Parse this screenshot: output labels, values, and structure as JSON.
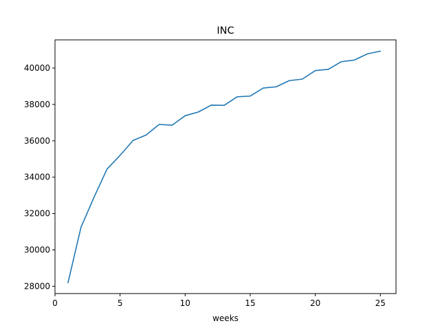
{
  "chart_data": {
    "type": "line",
    "title": "INC",
    "xlabel": "weeks",
    "ylabel": "",
    "xlim": [
      0,
      26.2
    ],
    "ylim": [
      27600,
      41550
    ],
    "x_ticks": [
      0,
      5,
      10,
      15,
      20,
      25
    ],
    "x_tick_labels": [
      "0",
      "5",
      "10",
      "15",
      "20",
      "25"
    ],
    "y_ticks": [
      28000,
      30000,
      32000,
      34000,
      36000,
      38000,
      40000
    ],
    "y_tick_labels": [
      "28000",
      "30000",
      "32000",
      "34000",
      "36000",
      "38000",
      "40000"
    ],
    "grid": false,
    "series": [
      {
        "color": "#1f77b4",
        "x": [
          1,
          2,
          3,
          4,
          5,
          6,
          7,
          8,
          9,
          10,
          11,
          12,
          13,
          14,
          15,
          16,
          17,
          18,
          19,
          20,
          21,
          22,
          23,
          24,
          25
        ],
        "values": [
          28200,
          31250,
          32900,
          34450,
          35200,
          36020,
          36320,
          36900,
          36860,
          37380,
          37580,
          37960,
          37950,
          38420,
          38460,
          38900,
          38970,
          39310,
          39390,
          39860,
          39930,
          40350,
          40440,
          40780,
          40930
        ]
      }
    ]
  }
}
